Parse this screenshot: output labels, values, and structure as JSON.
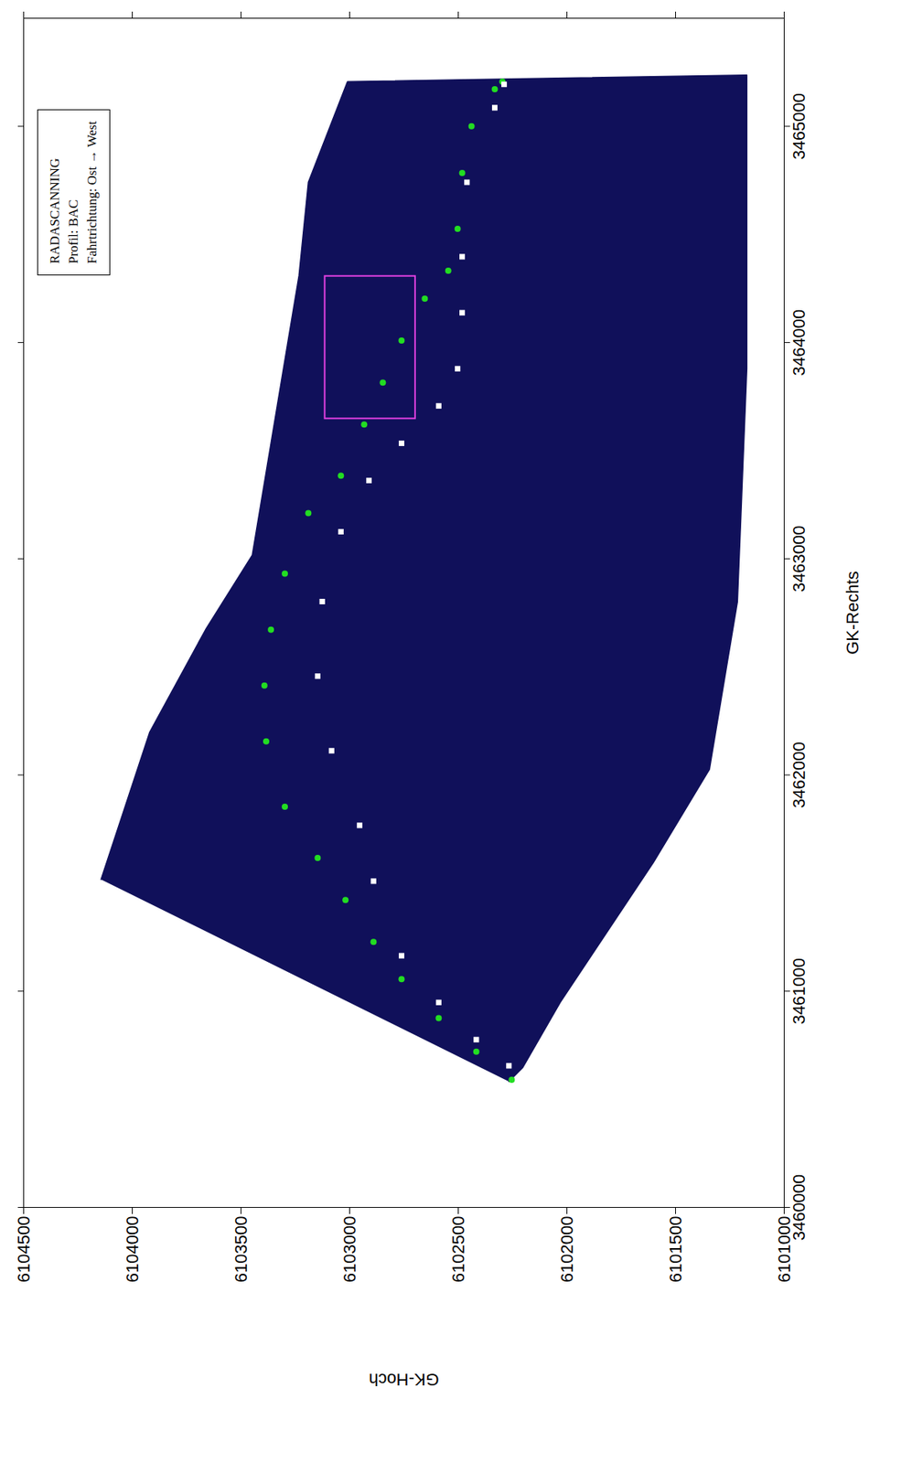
{
  "chart_data": {
    "type": "scatter",
    "x_label": "GK-Rechts",
    "y_label": "GK-Hoch",
    "xlim": [
      3460000,
      3465500
    ],
    "xticks": [
      3460000,
      3461000,
      3462000,
      3463000,
      3464000,
      3465000
    ],
    "ylim": [
      6101000,
      6104500
    ],
    "yticks": [
      6101000,
      6101500,
      6102000,
      6102500,
      6103000,
      6103500,
      6104000,
      6104500
    ],
    "grid": false,
    "annotations": [
      "RADASCANNING",
      "Profil: BAC",
      "Fahrtrichtung: Ost → West"
    ],
    "swath": {
      "color": "#10105a",
      "x": [
        3461517,
        3462198,
        3462672,
        3463017,
        3464310,
        3464741,
        3465207,
        3465237,
        3463879,
        3462802,
        3462026,
        3461595,
        3460948,
        3460647,
        3460582
      ],
      "y": [
        6104144,
        6103920,
        6103663,
        6103448,
        6103233,
        6103190,
        6103010,
        6101172,
        6101172,
        6101215,
        6101344,
        6101602,
        6102031,
        6102203,
        6102267
      ]
    },
    "highlight": {
      "color": "#e040e0",
      "x": [
        3463651,
        3464310
      ],
      "y": [
        6102697,
        6103113
      ]
    },
    "series": [
      {
        "color": "#22dd22",
        "marker": "circle",
        "x": [
          3460590,
          3460720,
          3460875,
          3461056,
          3461228,
          3461422,
          3461616,
          3461853,
          3462155,
          3462414,
          3462672,
          3462931,
          3463211,
          3463384,
          3463621,
          3463815,
          3464009,
          3464203,
          3464332,
          3464526,
          3464784,
          3465000,
          3465172,
          3465207
        ],
        "y": [
          6102254,
          6102417,
          6102590,
          6102761,
          6102890,
          6103019,
          6103147,
          6103298,
          6103384,
          6103392,
          6103362,
          6103298,
          6103190,
          6103040,
          6102933,
          6102847,
          6102761,
          6102654,
          6102546,
          6102503,
          6102482,
          6102439,
          6102332,
          6102297
        ]
      },
      {
        "color": "#ffffff",
        "marker": "square",
        "x": [
          3460655,
          3460776,
          3460948,
          3461164,
          3461509,
          3461767,
          3462112,
          3462457,
          3462802,
          3463125,
          3463362,
          3463534,
          3463707,
          3463879,
          3464138,
          3464397,
          3464741,
          3465086,
          3465194
        ],
        "y": [
          6102267,
          6102417,
          6102590,
          6102761,
          6102890,
          6102954,
          6103083,
          6103147,
          6103126,
          6103040,
          6102911,
          6102761,
          6102590,
          6102503,
          6102482,
          6102482,
          6102460,
          6102332,
          6102289
        ]
      }
    ]
  }
}
